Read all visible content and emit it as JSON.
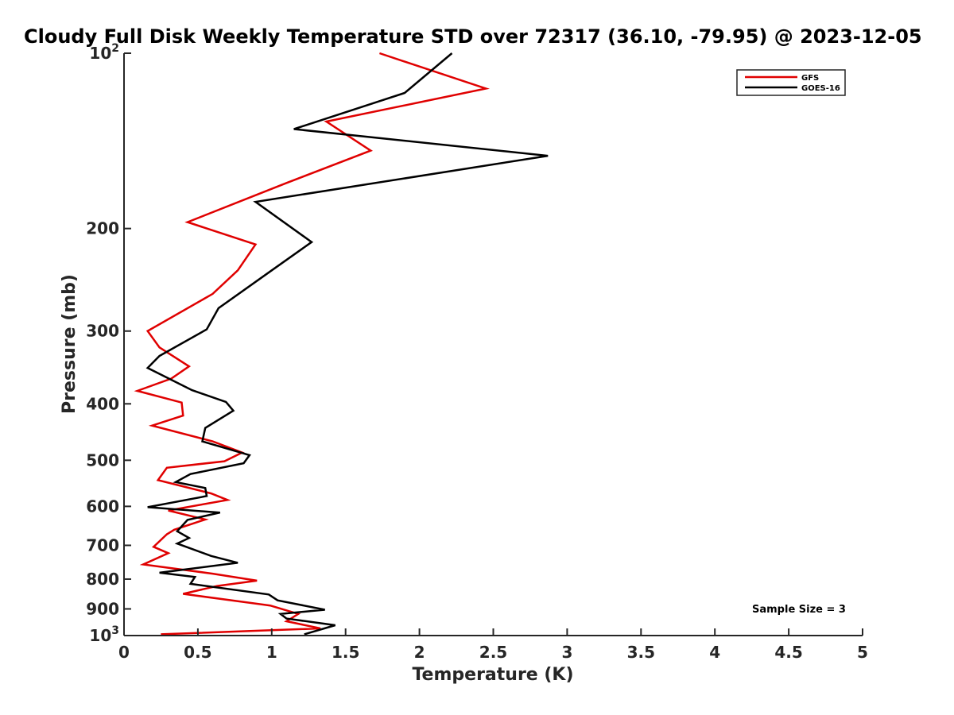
{
  "chart_data": {
    "type": "line",
    "title": "Cloudy Full Disk Weekly Temperature STD over 72317 (36.10, -79.95) @ 2023-12-05",
    "xlabel": "Temperature (K)",
    "ylabel": "Pressure (mb)",
    "xlim": [
      0,
      5
    ],
    "ylim": [
      100,
      1000
    ],
    "yscale": "log",
    "y_reversed": true,
    "grid": false,
    "legend_position": "top-right",
    "x_ticks": [
      "0",
      "0.5",
      "1",
      "1.5",
      "2",
      "2.5",
      "3",
      "3.5",
      "4",
      "4.5",
      "5"
    ],
    "y_ticks": [
      {
        "value": 100,
        "base": "10",
        "exp": "2"
      },
      {
        "value": 200,
        "label": "200"
      },
      {
        "value": 300,
        "label": "300"
      },
      {
        "value": 400,
        "label": "400"
      },
      {
        "value": 500,
        "label": "500"
      },
      {
        "value": 600,
        "label": "600"
      },
      {
        "value": 700,
        "label": "700"
      },
      {
        "value": 800,
        "label": "800"
      },
      {
        "value": 900,
        "label": "900"
      },
      {
        "value": 1000,
        "base": "10",
        "exp": "3"
      }
    ],
    "annotation": "Sample Size = 3",
    "series": [
      {
        "name": "GFS",
        "color": "#e00000",
        "points": [
          [
            1.73,
            100
          ],
          [
            2.45,
            115
          ],
          [
            1.37,
            131
          ],
          [
            1.67,
            147
          ],
          [
            1.1,
            167
          ],
          [
            0.43,
            195
          ],
          [
            0.89,
            213
          ],
          [
            0.77,
            236
          ],
          [
            0.6,
            259
          ],
          [
            0.16,
            300
          ],
          [
            0.24,
            320
          ],
          [
            0.44,
            345
          ],
          [
            0.32,
            362
          ],
          [
            0.09,
            380
          ],
          [
            0.39,
            398
          ],
          [
            0.4,
            419
          ],
          [
            0.19,
            436
          ],
          [
            0.6,
            464
          ],
          [
            0.8,
            485
          ],
          [
            0.68,
            502
          ],
          [
            0.29,
            515
          ],
          [
            0.23,
            541
          ],
          [
            0.59,
            570
          ],
          [
            0.7,
            585
          ],
          [
            0.3,
            610
          ],
          [
            0.55,
            632
          ],
          [
            0.34,
            658
          ],
          [
            0.29,
            670
          ],
          [
            0.2,
            704
          ],
          [
            0.3,
            722
          ],
          [
            0.13,
            755
          ],
          [
            0.6,
            783
          ],
          [
            0.9,
            805
          ],
          [
            0.63,
            822
          ],
          [
            0.4,
            848
          ],
          [
            0.99,
            888
          ],
          [
            1.18,
            918
          ],
          [
            1.1,
            945
          ],
          [
            1.33,
            972
          ],
          [
            0.25,
            995
          ]
        ]
      },
      {
        "name": "GOES-16",
        "color": "#000000",
        "points": [
          [
            2.22,
            100
          ],
          [
            1.9,
            117
          ],
          [
            1.15,
            135
          ],
          [
            2.87,
            150
          ],
          [
            0.89,
            180
          ],
          [
            1.27,
            211
          ],
          [
            1.0,
            236
          ],
          [
            0.64,
            274
          ],
          [
            0.56,
            298
          ],
          [
            0.24,
            331
          ],
          [
            0.16,
            347
          ],
          [
            0.46,
            379
          ],
          [
            0.69,
            397
          ],
          [
            0.74,
            411
          ],
          [
            0.55,
            440
          ],
          [
            0.53,
            464
          ],
          [
            0.85,
            490
          ],
          [
            0.81,
            506
          ],
          [
            0.45,
            528
          ],
          [
            0.35,
            545
          ],
          [
            0.55,
            558
          ],
          [
            0.56,
            576
          ],
          [
            0.16,
            602
          ],
          [
            0.65,
            615
          ],
          [
            0.43,
            633
          ],
          [
            0.36,
            662
          ],
          [
            0.44,
            680
          ],
          [
            0.36,
            695
          ],
          [
            0.59,
            730
          ],
          [
            0.77,
            750
          ],
          [
            0.24,
            780
          ],
          [
            0.48,
            793
          ],
          [
            0.45,
            815
          ],
          [
            0.98,
            850
          ],
          [
            1.04,
            870
          ],
          [
            1.36,
            903
          ],
          [
            1.06,
            918
          ],
          [
            1.1,
            935
          ],
          [
            1.43,
            960
          ],
          [
            1.22,
            995
          ]
        ]
      }
    ]
  }
}
